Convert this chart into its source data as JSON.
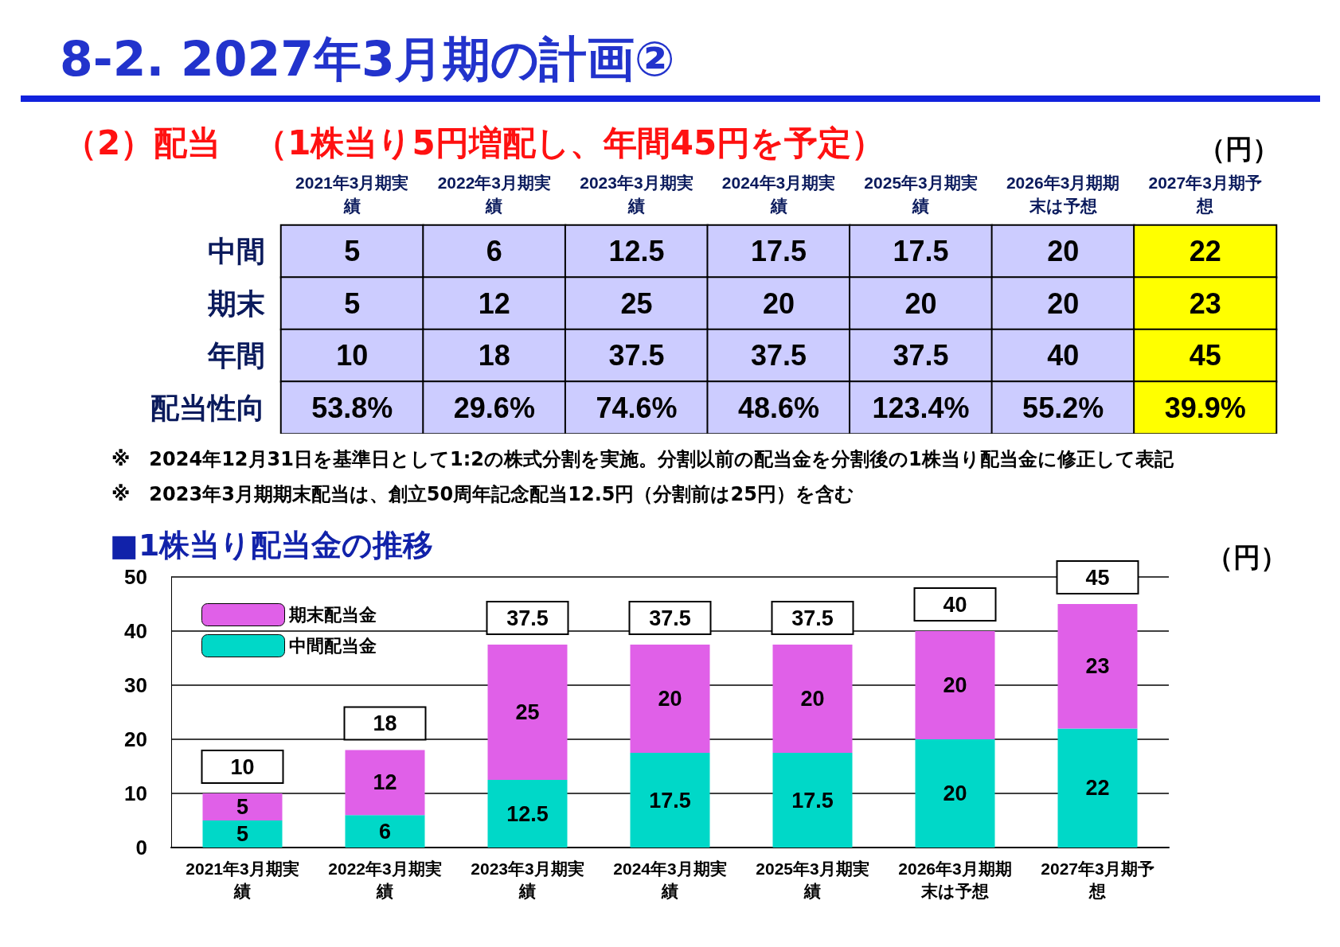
{
  "chart_data": [
    {
      "type": "heatmap",
      "title": "8-2. 2027年3月期の計画②",
      "subtitle": "（2）配当　（1株当り5円増配し、年間45円を予定）",
      "categories": [
        "2021年3月期実績",
        "2022年3月期実績",
        "2023年3月期実績",
        "2024年3月期実績",
        "2025年3月期実績",
        "2026年3月期期末は予想",
        "2027年3月期予想"
      ],
      "y_categories": [
        "中間",
        "期末",
        "年間",
        "配当性向"
      ],
      "cells": [
        [
          5,
          6,
          12.5,
          17.5,
          17.5,
          20,
          22
        ],
        [
          5,
          12,
          25,
          20,
          20,
          20,
          23
        ],
        [
          10,
          18,
          37.5,
          37.5,
          37.5,
          40,
          45
        ],
        [
          53.8,
          29.6,
          74.6,
          48.6,
          123.4,
          55.2,
          39.9
        ]
      ],
      "cell_labels": [
        [
          "5",
          "6",
          "12.5",
          "17.5",
          "17.5",
          "20",
          "22"
        ],
        [
          "5",
          "12",
          "25",
          "20",
          "20",
          "20",
          "23"
        ],
        [
          "10",
          "18",
          "37.5",
          "37.5",
          "37.5",
          "40",
          "45"
        ],
        [
          "53.8%",
          "29.6%",
          "74.6%",
          "48.6%",
          "123.4%",
          "55.2%",
          "39.9%"
        ]
      ],
      "annotations": [
        "（円）",
        "※　2024年12月31日を基準日として1:2の株式分割を実施。分割以前の配当金を分割後の1株当り配当金に修正して表記",
        "※　2023年3月期期末配当は、創立50周年記念配当12.5円（分割前は25円）を含む"
      ]
    },
    {
      "type": "bar",
      "title": "■1株当り配当金の推移",
      "ylabel": "（円）",
      "stacked": true,
      "categories": [
        "2021年3月期実績",
        "2022年3月期実績",
        "2023年3月期実績",
        "2024年3月期実績",
        "2025年3月期実績",
        "2026年3月期期末は予想",
        "2027年3月期予想"
      ],
      "series": [
        {
          "name": "中間配当金",
          "color": "#00d8c8",
          "values": [
            5,
            6,
            12.5,
            17.5,
            17.5,
            20,
            22
          ]
        },
        {
          "name": "期末配当金",
          "color": "#e060e8",
          "values": [
            5,
            12,
            25,
            20,
            20,
            20,
            23
          ]
        }
      ],
      "ylim": [
        0,
        50
      ],
      "yticks": [
        0,
        10,
        20,
        30,
        40,
        50
      ],
      "grid": "y",
      "legend": "top left",
      "data_labels": true,
      "totals": [
        "10",
        "18",
        "37.5",
        "37.5",
        "37.5",
        "40",
        "45"
      ]
    }
  ]
}
